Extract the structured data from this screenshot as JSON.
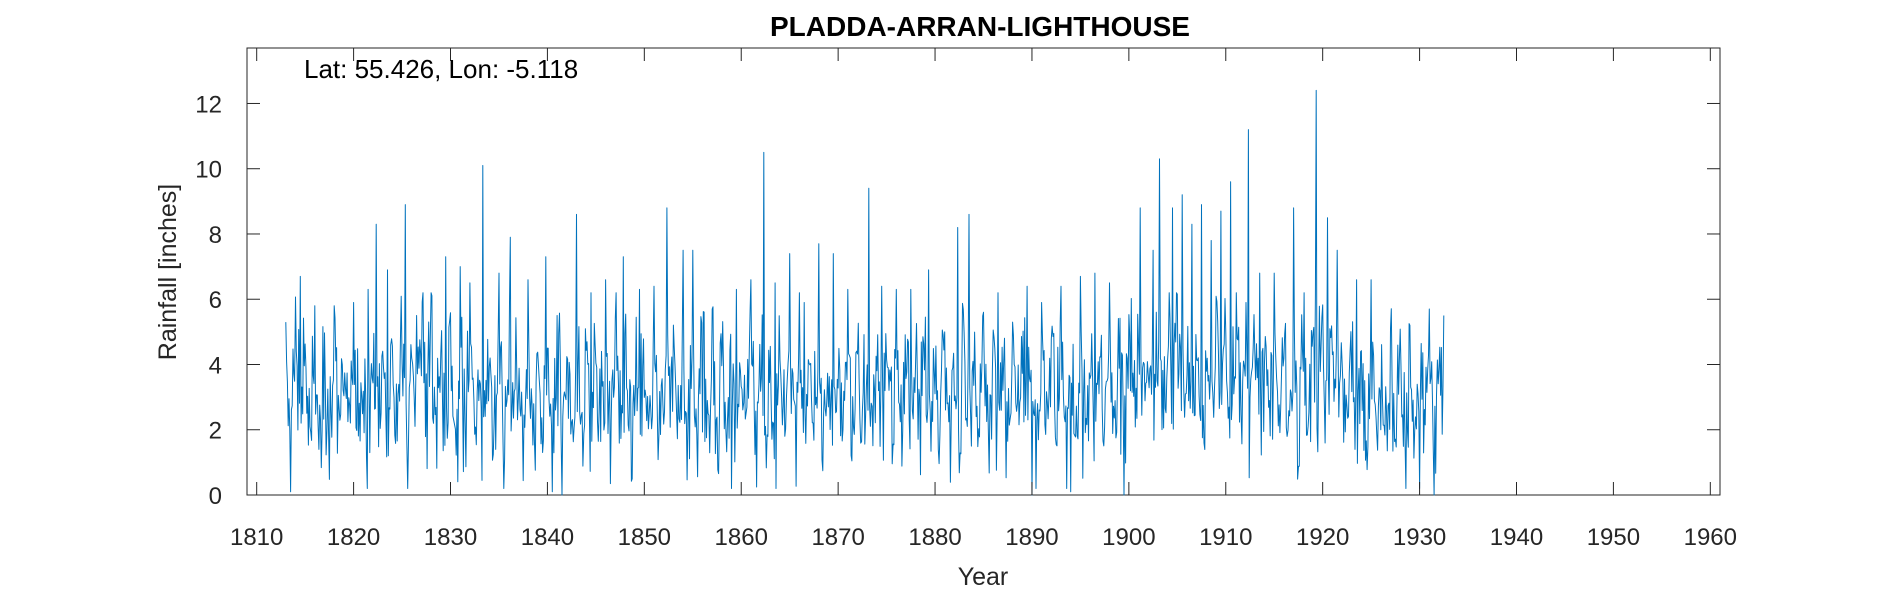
{
  "chart_data": {
    "type": "line",
    "title": "PLADDA-ARRAN-LIGHTHOUSE",
    "annotation": "Lat: 55.426, Lon: -5.118",
    "xlabel": "Year",
    "ylabel": "Rainfall [inches]",
    "xlim": [
      1809,
      1961
    ],
    "ylim": [
      0,
      13.7
    ],
    "x_ticks": [
      1810,
      1820,
      1830,
      1840,
      1850,
      1860,
      1870,
      1880,
      1890,
      1900,
      1910,
      1920,
      1930,
      1940,
      1950,
      1960
    ],
    "y_ticks": [
      0,
      2,
      4,
      6,
      8,
      10,
      12
    ],
    "grid": false,
    "series": [
      {
        "color": "#0072BD",
        "sampling": "monthly",
        "x_start": 1813.0,
        "x_end": 1932.5,
        "peaks": [
          {
            "x": 1813.0,
            "y": 5.3
          },
          {
            "x": 1814.5,
            "y": 6.7
          },
          {
            "x": 1816.0,
            "y": 5.8
          },
          {
            "x": 1818.0,
            "y": 5.8
          },
          {
            "x": 1820.0,
            "y": 5.9
          },
          {
            "x": 1821.5,
            "y": 6.3
          },
          {
            "x": 1822.3,
            "y": 8.3
          },
          {
            "x": 1823.5,
            "y": 6.9
          },
          {
            "x": 1825.3,
            "y": 8.9
          },
          {
            "x": 1826.5,
            "y": 5.5
          },
          {
            "x": 1828.0,
            "y": 6.2
          },
          {
            "x": 1829.5,
            "y": 7.3
          },
          {
            "x": 1831.0,
            "y": 7.0
          },
          {
            "x": 1832.0,
            "y": 6.5
          },
          {
            "x": 1833.3,
            "y": 10.1
          },
          {
            "x": 1835.0,
            "y": 6.8
          },
          {
            "x": 1836.2,
            "y": 7.9
          },
          {
            "x": 1838.0,
            "y": 6.6
          },
          {
            "x": 1839.8,
            "y": 7.3
          },
          {
            "x": 1841.0,
            "y": 5.5
          },
          {
            "x": 1843.0,
            "y": 8.6
          },
          {
            "x": 1844.5,
            "y": 6.2
          },
          {
            "x": 1846.0,
            "y": 6.6
          },
          {
            "x": 1847.8,
            "y": 7.3
          },
          {
            "x": 1849.5,
            "y": 6.3
          },
          {
            "x": 1851.0,
            "y": 6.4
          },
          {
            "x": 1852.3,
            "y": 8.8
          },
          {
            "x": 1854.0,
            "y": 7.5
          },
          {
            "x": 1855.0,
            "y": 7.5
          },
          {
            "x": 1857.0,
            "y": 5.7
          },
          {
            "x": 1859.5,
            "y": 6.3
          },
          {
            "x": 1861.0,
            "y": 6.6
          },
          {
            "x": 1862.3,
            "y": 10.5
          },
          {
            "x": 1863.5,
            "y": 6.5
          },
          {
            "x": 1865.0,
            "y": 7.4
          },
          {
            "x": 1866.5,
            "y": 5.9
          },
          {
            "x": 1868.0,
            "y": 7.7
          },
          {
            "x": 1869.5,
            "y": 7.4
          },
          {
            "x": 1871.0,
            "y": 6.3
          },
          {
            "x": 1873.2,
            "y": 9.4
          },
          {
            "x": 1874.5,
            "y": 6.4
          },
          {
            "x": 1876.0,
            "y": 6.3
          },
          {
            "x": 1877.5,
            "y": 6.3
          },
          {
            "x": 1879.3,
            "y": 6.9
          },
          {
            "x": 1881.0,
            "y": 5.0
          },
          {
            "x": 1882.3,
            "y": 8.2
          },
          {
            "x": 1883.5,
            "y": 8.6
          },
          {
            "x": 1885.0,
            "y": 5.6
          },
          {
            "x": 1886.5,
            "y": 6.2
          },
          {
            "x": 1888.0,
            "y": 5.3
          },
          {
            "x": 1889.5,
            "y": 6.4
          },
          {
            "x": 1891.0,
            "y": 5.9
          },
          {
            "x": 1893.0,
            "y": 6.4
          },
          {
            "x": 1895.0,
            "y": 6.7
          },
          {
            "x": 1896.5,
            "y": 6.8
          },
          {
            "x": 1898.0,
            "y": 6.5
          },
          {
            "x": 1899.5,
            "y": 7.1
          },
          {
            "x": 1901.2,
            "y": 8.8
          },
          {
            "x": 1902.5,
            "y": 7.5
          },
          {
            "x": 1903.2,
            "y": 10.3
          },
          {
            "x": 1904.5,
            "y": 8.8
          },
          {
            "x": 1905.5,
            "y": 9.2
          },
          {
            "x": 1906.5,
            "y": 8.3
          },
          {
            "x": 1907.5,
            "y": 8.9
          },
          {
            "x": 1908.5,
            "y": 7.8
          },
          {
            "x": 1909.5,
            "y": 8.7
          },
          {
            "x": 1910.5,
            "y": 9.6
          },
          {
            "x": 1912.3,
            "y": 11.2
          },
          {
            "x": 1913.5,
            "y": 6.8
          },
          {
            "x": 1915.0,
            "y": 6.8
          },
          {
            "x": 1917.0,
            "y": 8.8
          },
          {
            "x": 1919.3,
            "y": 12.4
          },
          {
            "x": 1920.5,
            "y": 8.5
          },
          {
            "x": 1921.5,
            "y": 7.5
          },
          {
            "x": 1923.5,
            "y": 6.6
          },
          {
            "x": 1925.0,
            "y": 6.6
          },
          {
            "x": 1927.0,
            "y": 5.1
          },
          {
            "x": 1929.0,
            "y": 5.2
          },
          {
            "x": 1931.0,
            "y": 5.7
          },
          {
            "x": 1932.5,
            "y": 5.5
          }
        ],
        "lows": [
          {
            "x": 1813.5,
            "y": 0.1
          },
          {
            "x": 1840.5,
            "y": 0.1
          },
          {
            "x": 1841.5,
            "y": 0.0
          },
          {
            "x": 1859.0,
            "y": 0.2
          },
          {
            "x": 1890.0,
            "y": 0.0
          },
          {
            "x": 1894.0,
            "y": 0.1
          },
          {
            "x": 1899.5,
            "y": 0.0
          },
          {
            "x": 1930.0,
            "y": 0.2
          },
          {
            "x": 1931.5,
            "y": 0.0
          }
        ]
      }
    ]
  }
}
